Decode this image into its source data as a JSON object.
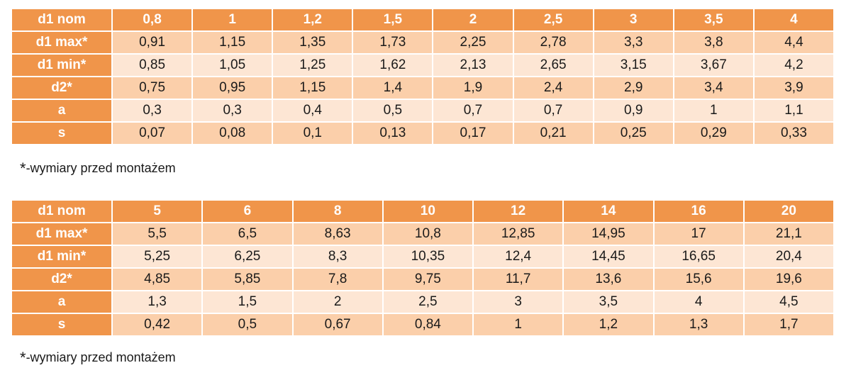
{
  "tables": [
    {
      "header_label": "d1 nom",
      "columns": [
        "0,8",
        "1",
        "1,2",
        "1,5",
        "2",
        "2,5",
        "3",
        "3,5",
        "4"
      ],
      "rows": [
        {
          "label": "d1 max*",
          "values": [
            "0,91",
            "1,15",
            "1,35",
            "1,73",
            "2,25",
            "2,78",
            "3,3",
            "3,8",
            "4,4"
          ]
        },
        {
          "label": "d1 min*",
          "values": [
            "0,85",
            "1,05",
            "1,25",
            "1,62",
            "2,13",
            "2,65",
            "3,15",
            "3,67",
            "4,2"
          ]
        },
        {
          "label": "d2*",
          "values": [
            "0,75",
            "0,95",
            "1,15",
            "1,4",
            "1,9",
            "2,4",
            "2,9",
            "3,4",
            "3,9"
          ]
        },
        {
          "label": "a",
          "values": [
            "0,3",
            "0,3",
            "0,4",
            "0,5",
            "0,7",
            "0,7",
            "0,9",
            "1",
            "1,1"
          ]
        },
        {
          "label": "s",
          "values": [
            "0,07",
            "0,08",
            "0,1",
            "0,13",
            "0,17",
            "0,21",
            "0,25",
            "0,29",
            "0,33"
          ]
        }
      ],
      "note_star": "*",
      "note_text": "-wymiary przed montażem"
    },
    {
      "header_label": "d1 nom",
      "columns": [
        "5",
        "6",
        "8",
        "10",
        "12",
        "14",
        "16",
        "20"
      ],
      "rows": [
        {
          "label": "d1 max*",
          "values": [
            "5,5",
            "6,5",
            "8,63",
            "10,8",
            "12,85",
            "14,95",
            "17",
            "21,1"
          ]
        },
        {
          "label": "d1 min*",
          "values": [
            "5,25",
            "6,25",
            "8,3",
            "10,35",
            "12,4",
            "14,45",
            "16,65",
            "20,4"
          ]
        },
        {
          "label": "d2*",
          "values": [
            "4,85",
            "5,85",
            "7,8",
            "9,75",
            "11,7",
            "13,6",
            "15,6",
            "19,6"
          ]
        },
        {
          "label": "a",
          "values": [
            "1,3",
            "1,5",
            "2",
            "2,5",
            "3",
            "3,5",
            "4",
            "4,5"
          ]
        },
        {
          "label": "s",
          "values": [
            "0,42",
            "0,5",
            "0,67",
            "0,84",
            "1",
            "1,2",
            "1,3",
            "1,7"
          ]
        }
      ],
      "note_star": "*",
      "note_text": "-wymiary przed montażem"
    }
  ],
  "colors": {
    "header_orange": "#f0954a",
    "row_dark": "#fbcfaa",
    "row_light": "#fde6d4"
  }
}
